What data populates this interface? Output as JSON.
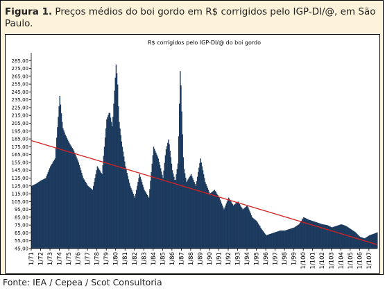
{
  "figure": {
    "label": "Figura 1.",
    "caption": "Preços médios do boi gordo em R$ corrigidos pelo IGP-DI/@, em São Paulo."
  },
  "source": "Fonte: IEA / Cepea / Scot Consultoria",
  "chart_data": {
    "type": "area",
    "title": "R$ corrigidos pelo IGP-DI/@ do boi gordo",
    "ylim": [
      45,
      295
    ],
    "yticks": [
      "285,00",
      "275,00",
      "265,00",
      "255,00",
      "245,00",
      "235,00",
      "225,00",
      "215,00",
      "205,00",
      "195,00",
      "185,00",
      "175,00",
      "165,00",
      "155,00",
      "145,00",
      "135,00",
      "125,00",
      "115,00",
      "105,00",
      "95,00",
      "85,00",
      "75,00",
      "65,00",
      "55,00",
      "45,00"
    ],
    "ytick_values": [
      285,
      275,
      265,
      255,
      245,
      235,
      225,
      215,
      205,
      195,
      185,
      175,
      165,
      155,
      145,
      135,
      125,
      115,
      105,
      95,
      85,
      75,
      65,
      55,
      45
    ],
    "xticks": [
      "1/71",
      "1/72",
      "1/73",
      "1/74",
      "1/75",
      "1/76",
      "1/77",
      "1/78",
      "1/79",
      "1/80",
      "1/81",
      "1/82",
      "1/83",
      "1/84",
      "1/85",
      "1/86",
      "1/87",
      "1/88",
      "1/89",
      "1/90",
      "1/91",
      "1/92",
      "1/93",
      "1/94",
      "1/95",
      "1/96",
      "1/97",
      "1/98",
      "1/99",
      "1/100",
      "1/101",
      "1/102",
      "1/103",
      "1/104",
      "1/105",
      "1/106",
      "1/107"
    ],
    "x_start": 1971,
    "x_end": 2007.9,
    "grid": false,
    "series": [
      {
        "color": "#1c3a5e",
        "x": [
          1971,
          1971.5,
          1972,
          1972.5,
          1973,
          1973.5,
          1974,
          1974.3,
          1974.6,
          1975,
          1975.5,
          1976,
          1976.5,
          1977,
          1977.5,
          1978,
          1978.5,
          1979,
          1979.3,
          1979.6,
          1980,
          1980.15,
          1980.3,
          1980.6,
          1981,
          1981.5,
          1982,
          1982.5,
          1983,
          1983.5,
          1984,
          1984.5,
          1985,
          1985.3,
          1985.6,
          1986,
          1986.3,
          1986.6,
          1986.85,
          1987,
          1987.2,
          1987.5,
          1988,
          1988.5,
          1989,
          1989.5,
          1990,
          1990.5,
          1991,
          1991.5,
          1992,
          1992.5,
          1993,
          1993.5,
          1994,
          1994.5,
          1995,
          1995.5,
          1996,
          1996.5,
          1997,
          1997.5,
          1998,
          1998.5,
          1999,
          1999.5,
          2000,
          2000.5,
          2001,
          2001.5,
          2002,
          2002.5,
          2003,
          2003.5,
          2004,
          2004.5,
          2005,
          2005.5,
          2006,
          2006.5,
          2007,
          2007.5,
          2007.9
        ],
        "values": [
          125,
          128,
          132,
          135,
          150,
          160,
          240,
          200,
          190,
          180,
          170,
          155,
          135,
          125,
          120,
          150,
          140,
          210,
          220,
          200,
          280,
          260,
          210,
          180,
          150,
          125,
          110,
          140,
          120,
          110,
          175,
          160,
          135,
          170,
          185,
          145,
          130,
          155,
          280,
          220,
          150,
          130,
          140,
          125,
          160,
          130,
          115,
          120,
          110,
          95,
          110,
          100,
          105,
          95,
          100,
          85,
          80,
          70,
          62,
          64,
          66,
          68,
          68,
          70,
          72,
          76,
          85,
          82,
          80,
          78,
          76,
          75,
          72,
          74,
          76,
          74,
          70,
          66,
          60,
          58,
          62,
          64,
          66
        ]
      }
    ],
    "trendline": {
      "color": "#d62020",
      "start": {
        "x": 1971,
        "y": 183
      },
      "end": {
        "x": 2007.9,
        "y": 50
      }
    }
  }
}
